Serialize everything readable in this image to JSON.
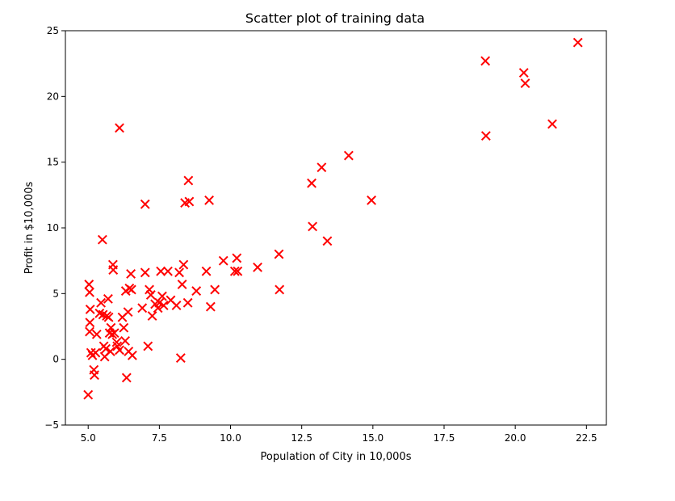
{
  "chart_data": {
    "type": "scatter",
    "title": "Scatter plot of training data",
    "xlabel": "Population of City in 10,000s",
    "ylabel": "Profit in $10,000s",
    "xlim": [
      4.2,
      23.2
    ],
    "ylim": [
      -5,
      25
    ],
    "xticks": [
      "5.0",
      "7.5",
      "10.0",
      "12.5",
      "15.0",
      "17.5",
      "20.0",
      "22.5"
    ],
    "yticks": [
      "−5",
      "0",
      "5",
      "10",
      "15",
      "20",
      "25"
    ],
    "marker": "x",
    "color": "#ff0000",
    "grid": false,
    "x": [
      5.03,
      5.05,
      5.07,
      5.06,
      5.05,
      5.1,
      5.15,
      5.2,
      5.22,
      5.26,
      5.3,
      5.4,
      5.45,
      5.5,
      5.52,
      5.55,
      5.58,
      5.62,
      5.65,
      5.7,
      5.72,
      5.75,
      5.78,
      5.8,
      5.85,
      5.87,
      5.88,
      5.92,
      6.0,
      6.02,
      6.1,
      6.2,
      6.25,
      6.3,
      6.32,
      6.35,
      6.4,
      6.42,
      6.45,
      6.5,
      6.52,
      6.55,
      6.9,
      7.0,
      7.1,
      7.15,
      7.2,
      7.25,
      7.35,
      7.45,
      7.5,
      7.55,
      7.6,
      7.65,
      7.8,
      7.9,
      8.1,
      8.2,
      8.25,
      8.3,
      8.35,
      8.4,
      8.5,
      8.52,
      8.55,
      8.8,
      9.15,
      9.25,
      9.3,
      9.45,
      9.75,
      10.15,
      10.22,
      10.25,
      10.95,
      11.7,
      11.72,
      12.85,
      12.88,
      13.2,
      13.4,
      14.15,
      14.95,
      18.95,
      18.97,
      20.3,
      20.35,
      21.3,
      22.2,
      6.1,
      7.0,
      5.0
    ],
    "y": [
      5.7,
      5.1,
      3.8,
      2.8,
      2.1,
      0.5,
      0.3,
      -0.8,
      -1.2,
      0.5,
      1.9,
      3.5,
      4.3,
      9.1,
      3.4,
      1.0,
      0.2,
      0.8,
      3.3,
      4.6,
      3.2,
      2.0,
      0.6,
      2.4,
      1.9,
      7.2,
      6.8,
      2.0,
      1.3,
      1.0,
      0.7,
      3.2,
      2.4,
      1.4,
      5.2,
      -1.4,
      3.6,
      0.6,
      5.4,
      6.5,
      5.3,
      0.3,
      3.9,
      11.8,
      1.0,
      5.3,
      4.9,
      3.3,
      4.2,
      3.9,
      4.3,
      6.7,
      4.8,
      4.1,
      6.7,
      4.5,
      4.1,
      6.6,
      0.1,
      5.7,
      7.2,
      11.9,
      4.3,
      13.6,
      12.0,
      5.2,
      6.7,
      12.1,
      4.0,
      5.3,
      7.5,
      6.7,
      7.7,
      6.7,
      7.0,
      8.0,
      5.3,
      13.4,
      10.1,
      14.6,
      9.0,
      15.5,
      12.1,
      22.7,
      17.0,
      21.8,
      21.0,
      17.9,
      24.1,
      17.6,
      6.6,
      -2.7
    ]
  }
}
